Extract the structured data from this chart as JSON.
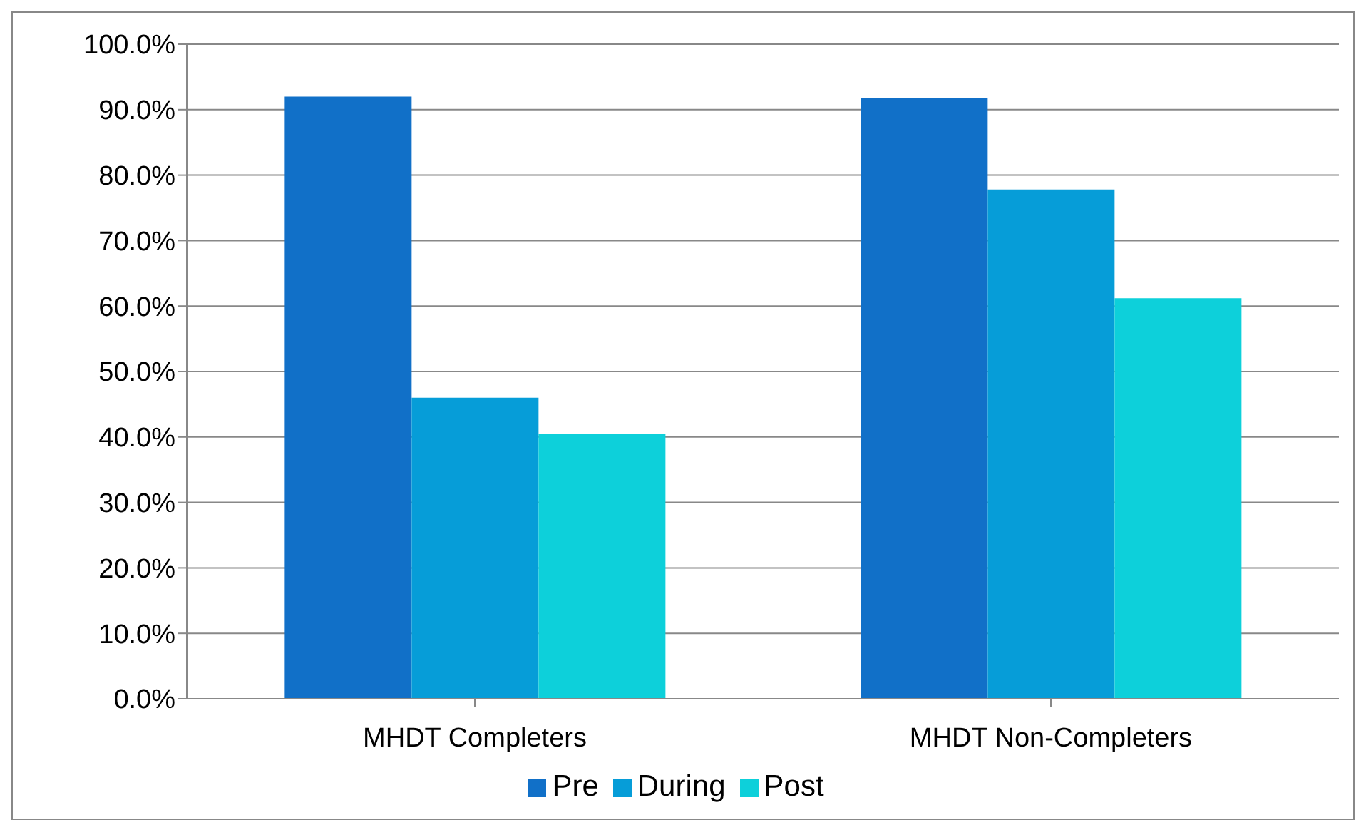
{
  "chart_data": {
    "type": "bar",
    "categories": [
      "MHDT Completers",
      "MHDT Non-Completers"
    ],
    "series": [
      {
        "name": "Pre",
        "color": "#1170c8",
        "values": [
          92.0,
          91.8
        ]
      },
      {
        "name": "During",
        "color": "#069dd8",
        "values": [
          46.0,
          77.8
        ]
      },
      {
        "name": "Post",
        "color": "#0dd0da",
        "values": [
          40.5,
          61.2
        ]
      }
    ],
    "ylim": [
      0,
      100
    ],
    "yticks": [
      {
        "value": 0,
        "label": "0.0%"
      },
      {
        "value": 10,
        "label": "10.0%"
      },
      {
        "value": 20,
        "label": "20.0%"
      },
      {
        "value": 30,
        "label": "30.0%"
      },
      {
        "value": 40,
        "label": "40.0%"
      },
      {
        "value": 50,
        "label": "50.0%"
      },
      {
        "value": 60,
        "label": "60.0%"
      },
      {
        "value": 70,
        "label": "70.0%"
      },
      {
        "value": 80,
        "label": "80.0%"
      },
      {
        "value": 90,
        "label": "90.0%"
      },
      {
        "value": 100,
        "label": "100.0%"
      }
    ],
    "grid": "y",
    "legend": "bottom"
  }
}
